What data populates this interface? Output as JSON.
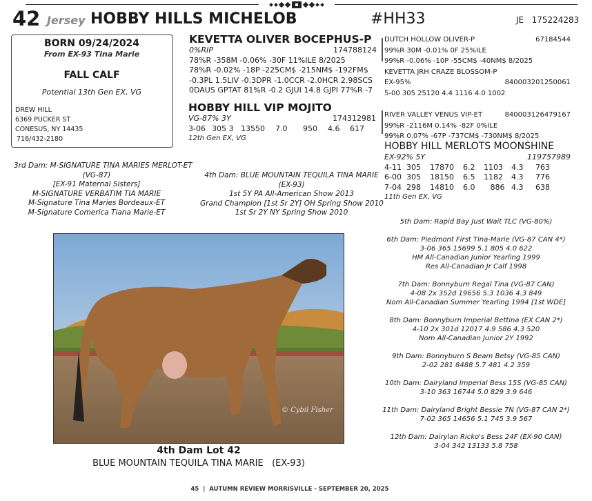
{
  "header": {
    "lot": "42",
    "breed": "Jersey",
    "animal_name": "HOBBY HILLS MICHELOB",
    "reg_name": "#HH33",
    "breed_code": "JE",
    "reg_number": "175224283"
  },
  "info_box": {
    "born": "BORN 09/24/2024",
    "from": "From EX-93 Tina Marie",
    "class": "FALL CALF",
    "potential": "Potential 13th Gen EX, VG",
    "consignor": [
      "DREW HILL",
      "6369 PUCKER ST",
      "CONESUS, NY 14435",
      "716/432-2180"
    ]
  },
  "sire": {
    "name": "KEVETTA OLIVER BOCEPHUS-P",
    "rip": "0%RIP",
    "number": "174788124",
    "lines": [
      "78%R -358M -0.06% -30F 11%ILE  8/2025",
      "78%R -0.02% -18P -225CM$ -215NM$ -192FM$",
      "-0.3PL 1.5LIV -0.3DPR -1.0CCR -2.0HCR 2.98SCS",
      "0DAUS GPTAT 81%R -0.2 GJUI 14.8 GJPI 77%R -7"
    ]
  },
  "sire_sire": {
    "name": "DUTCH HOLLOW OLIVER-P",
    "number": "67184544",
    "lines": [
      "99%R 30M -0.01% 0F 25%ILE",
      "99%R -0.06% -10P -55CM$ -40NM$  8/2025"
    ]
  },
  "sire_dam": {
    "name": "KEVETTA JRH CRAZE BLOSSOM-P",
    "score": "EX-95%",
    "number": "840003201250061",
    "record": "5-00 305  25120 4.4 1116 4.0 1002"
  },
  "dam": {
    "name": "HOBBY HILL VIP MOJITO",
    "score": "VG-87% 3Y",
    "number": "174312981",
    "record": [
      "3-06",
      "305 3",
      "13550",
      "7.0",
      "950",
      "4.6",
      "617"
    ],
    "gen": "12th Gen EX, VG"
  },
  "dam_sire": {
    "name": "RIVER VALLEY VENUS VIP-ET",
    "number": "840003126479167",
    "lines": [
      "99%R -2116M 0.14% -82F 0%ILE",
      "99%R 0.07% -67P -737CM$ -730NM$  8/2025"
    ]
  },
  "dam_dam": {
    "name": "HOBBY HILL MERLOTS MOONSHINE",
    "score": "EX-92% 5Y",
    "number": "119757989",
    "records": [
      [
        "4-11",
        "305",
        "17870",
        "6.2",
        "1103",
        "4.3",
        "763"
      ],
      [
        "6-00",
        "305",
        "18150",
        "6.5",
        "1182",
        "4.3",
        "776"
      ],
      [
        "7-04",
        "298",
        "14810",
        "6.0",
        "886",
        "4.3",
        "638"
      ]
    ],
    "gen": "11th Gen EX, VG"
  },
  "third_dam": [
    "3rd Dam: M-SIGNATURE TINA MARIES MERLOT-ET",
    "(VG-87)",
    "[EX-91 Maternal Sisters]",
    "M-SIGNATURE VERBATIM TIA MARIE",
    "M-Signature Tina Maries Bordeaux-ET",
    "M-Signature Comerica Tiana Marie-ET"
  ],
  "fourth_dam": [
    "4th Dam: BLUE MOUNTAIN TEQUILA TINA MARIE",
    "(EX-93)",
    "1st 5Y PA All-American Show 2013",
    "Grand Champion [1st Sr 2Y] OH Spring Show 2010",
    "1st Sr 2Y NY Spring Show 2010"
  ],
  "later_dams": [
    [
      "5th Dam: Rapid Bay Just Wait TLC  (VG-80%)"
    ],
    [
      "6th Dam: Piedmont First Tina-Marie (VG-87 CAN 4*)",
      "3-06 365 15699 5.1 805 4.0 622",
      "HM All-Canadian Junior Yearling 1999",
      "Res All-Canadian Jr Calf 1998"
    ],
    [
      "7th Dam: Bonnyburn Regal Tina  (VG-87 CAN)",
      "4-08 2x 352d 19656 5.3 1036 4.3 849",
      "Nom All-Canadian Summer Yearling 1994 [1st WDE]"
    ],
    [
      "8th Dam: Bonnyburn Imperial Bettina  (EX CAN 2*)",
      "4-10 2x 301d 12017 4.9 586 4.3 520",
      "Nom All-Canadian Junior 2Y 1992"
    ],
    [
      "9th Dam: Bonnyburn S Beam Betsy  (VG-85 CAN)",
      "2-02  281 8488 5.7 481 4.2 359"
    ],
    [
      "10th Dam: Dairyland Imperial Bess 15S  (VG-85 CAN)",
      "3-10  363 16744 5.0 829 3.9 646"
    ],
    [
      "11th Dam: Dairyland Bright Bessie 7N  (VG-87 CAN 2*)",
      "7-02  365 14656 5.1 745 3.9 567"
    ],
    [
      "12th Dam: Dairylan Ricko's Bess 24F (EX-90 CAN)",
      "3-04  342 13133 5.8 758"
    ]
  ],
  "photo": {
    "watermark": "© Cybil Fisher",
    "caption_title": "4th Dam Lot 42",
    "caption_name": "BLUE MOUNTAIN TEQUILA TINA MARIE   (EX-93)"
  },
  "footer": "45  |  AUTUMN REVIEW MORRISVILLE - SEPTEMBER 20, 2025"
}
